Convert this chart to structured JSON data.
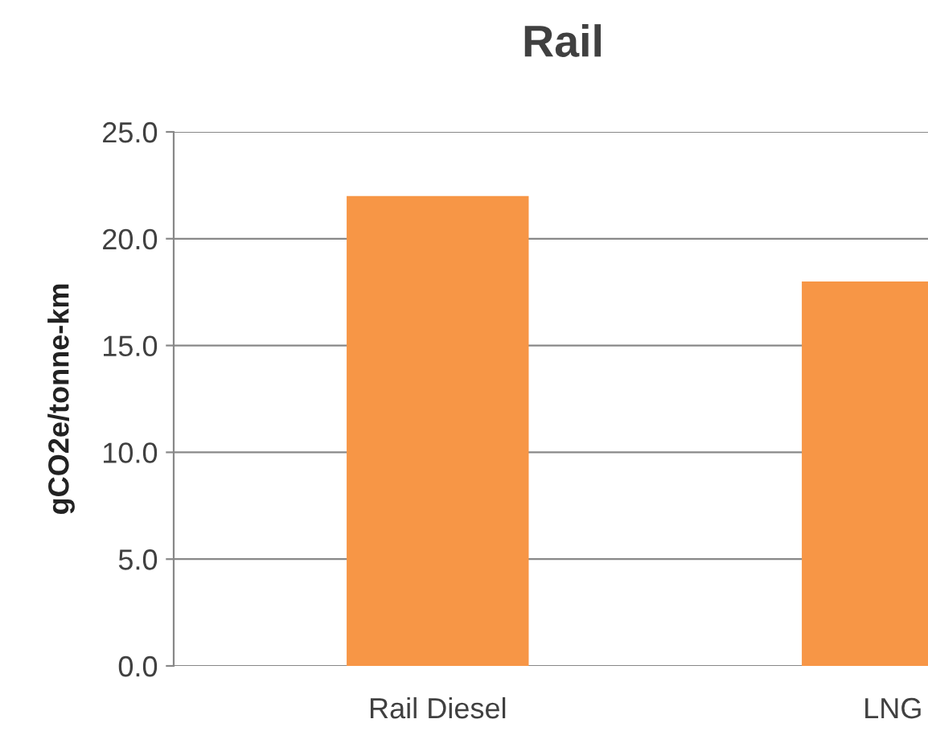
{
  "chart_data": {
    "type": "bar",
    "title": "Rail",
    "ylabel": "gCO2e/tonne-km",
    "categories": [
      "Rail Diesel",
      "LNG"
    ],
    "values": [
      22.0,
      18.0
    ],
    "color": "#f79646",
    "ylim": [
      0,
      25
    ],
    "yticks": [
      {
        "value": 0,
        "label": "0.0"
      },
      {
        "value": 5,
        "label": "5.0"
      },
      {
        "value": 10,
        "label": "10.0"
      },
      {
        "value": 15,
        "label": "15.0"
      },
      {
        "value": 20,
        "label": "20.0"
      },
      {
        "value": 25,
        "label": "25.0"
      }
    ],
    "grid": "y",
    "legend": false
  }
}
